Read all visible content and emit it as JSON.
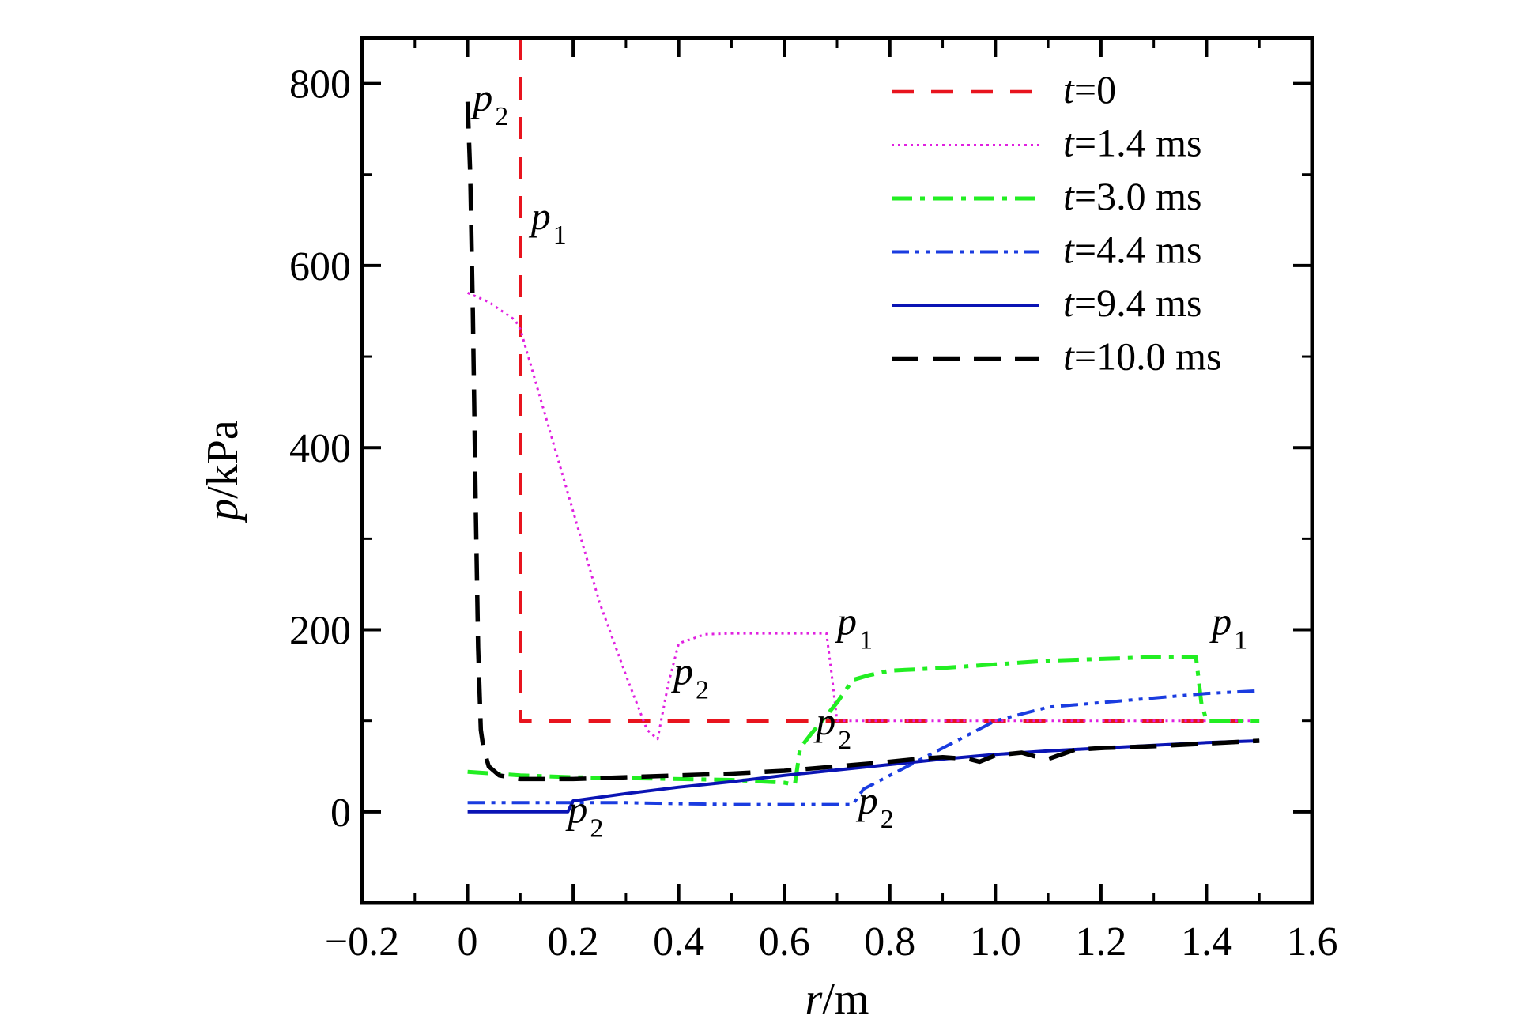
{
  "chart_data": {
    "type": "line",
    "xlabel": "r/m",
    "ylabel": "p/kPa",
    "xlim": [
      -0.2,
      1.6
    ],
    "ylim": [
      -100,
      850
    ],
    "xticks": [
      -0.2,
      0,
      0.2,
      0.4,
      0.6,
      0.8,
      1.0,
      1.2,
      1.4,
      1.6
    ],
    "xtick_labels": [
      "−0.2",
      "0",
      "0.2",
      "0.4",
      "0.6",
      "0.8",
      "1.0",
      "1.2",
      "1.4",
      "1.6"
    ],
    "yticks": [
      0,
      200,
      400,
      600,
      800
    ],
    "ytick_labels": [
      "0",
      "200",
      "400",
      "600",
      "800"
    ],
    "grid": false,
    "legend_position": "top-right",
    "series": [
      {
        "name": "t=0",
        "color": "#e8141e",
        "dash": "dashed",
        "x": [
          0.1,
          0.1,
          0.1,
          1.5
        ],
        "y": [
          850,
          100,
          100,
          100
        ]
      },
      {
        "name": "t=1.4 ms",
        "color": "#e020e0",
        "dash": "dotted",
        "x": [
          0.0,
          0.04,
          0.09,
          0.1,
          0.12,
          0.15,
          0.2,
          0.25,
          0.3,
          0.34,
          0.36,
          0.38,
          0.4,
          0.45,
          0.5,
          0.55,
          0.6,
          0.65,
          0.68,
          0.69,
          0.7,
          0.8,
          1.0,
          1.2,
          1.4,
          1.5
        ],
        "y": [
          570,
          560,
          540,
          530,
          490,
          430,
          330,
          230,
          150,
          90,
          80,
          140,
          185,
          195,
          196,
          196,
          196,
          196,
          196,
          150,
          100,
          100,
          100,
          100,
          100,
          100
        ]
      },
      {
        "name": "t=3.0 ms",
        "color": "#22ee22",
        "dash": "dashdot",
        "x": [
          0.0,
          0.05,
          0.1,
          0.2,
          0.3,
          0.4,
          0.5,
          0.6,
          0.62,
          0.63,
          0.65,
          0.7,
          0.73,
          0.76,
          0.8,
          0.9,
          1.0,
          1.1,
          1.2,
          1.3,
          1.38,
          1.39,
          1.4,
          1.45,
          1.5
        ],
        "y": [
          44,
          42,
          40,
          38,
          37,
          36,
          35,
          32,
          30,
          70,
          85,
          120,
          145,
          150,
          155,
          158,
          162,
          166,
          168,
          170,
          170,
          120,
          100,
          100,
          100
        ]
      },
      {
        "name": "t=4.4 ms",
        "color": "#1a3ce0",
        "dash": "dashdotdot",
        "x": [
          0.0,
          0.1,
          0.18,
          0.2,
          0.3,
          0.4,
          0.5,
          0.6,
          0.7,
          0.73,
          0.75,
          0.8,
          0.9,
          1.0,
          1.1,
          1.2,
          1.3,
          1.4,
          1.5
        ],
        "y": [
          10,
          10,
          10,
          10,
          10,
          9,
          8,
          8,
          8,
          8,
          25,
          40,
          70,
          100,
          115,
          120,
          125,
          130,
          133
        ]
      },
      {
        "name": "t=9.4 ms",
        "color": "#0a14b4",
        "dash": "solid",
        "x": [
          0.0,
          0.1,
          0.19,
          0.2,
          0.3,
          0.4,
          0.5,
          0.6,
          0.7,
          0.8,
          0.9,
          1.0,
          1.1,
          1.2,
          1.3,
          1.4,
          1.5
        ],
        "y": [
          0,
          0,
          0,
          12,
          20,
          27,
          33,
          40,
          46,
          52,
          58,
          63,
          67,
          70,
          73,
          76,
          78
        ]
      },
      {
        "name": "t=10.0 ms",
        "color": "#000000",
        "dash": "longdash",
        "x": [
          0.0,
          0.005,
          0.01,
          0.015,
          0.02,
          0.025,
          0.03,
          0.04,
          0.06,
          0.1,
          0.2,
          0.3,
          0.4,
          0.5,
          0.6,
          0.7,
          0.8,
          0.85,
          0.9,
          0.95,
          0.97,
          1.0,
          1.05,
          1.08,
          1.1,
          1.12,
          1.15,
          1.2,
          1.3,
          1.4,
          1.5
        ],
        "y": [
          780,
          700,
          550,
          350,
          180,
          90,
          70,
          50,
          40,
          36,
          36,
          38,
          40,
          42,
          45,
          50,
          55,
          58,
          60,
          58,
          55,
          62,
          65,
          60,
          58,
          62,
          68,
          70,
          72,
          75,
          78
        ]
      }
    ],
    "annotations": [
      {
        "text": "p",
        "sub": "2",
        "x": 0.01,
        "y": 770
      },
      {
        "text": "p",
        "sub": "1",
        "x": 0.12,
        "y": 640
      },
      {
        "text": "p",
        "sub": "1",
        "x": 0.7,
        "y": 195
      },
      {
        "text": "p",
        "sub": "2",
        "x": 0.39,
        "y": 140
      },
      {
        "text": "p",
        "sub": "2",
        "x": 0.66,
        "y": 85
      },
      {
        "text": "p",
        "sub": "1",
        "x": 1.41,
        "y": 195
      },
      {
        "text": "p",
        "sub": "2",
        "x": 0.19,
        "y": -12
      },
      {
        "text": "p",
        "sub": "2",
        "x": 0.74,
        "y": -2
      }
    ]
  }
}
